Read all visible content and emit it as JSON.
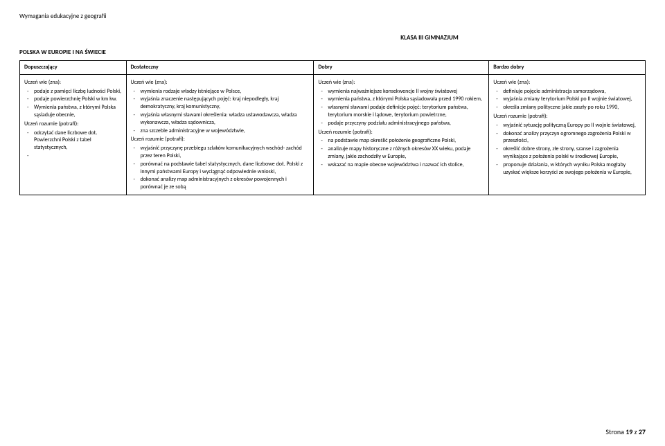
{
  "doc": {
    "header": "Wymagania edukacyjne z geografii",
    "klasa": "KLASA III GIMNAZJUM",
    "section": "POLSKA W EUROPIE I NA ŚWIECIE",
    "footer_prefix": "Strona ",
    "footer_page": "19",
    "footer_mid": " z ",
    "footer_total": "27"
  },
  "headers": {
    "c1": "Dopuszczający",
    "c2": "Dostateczny",
    "c3": "Dobry",
    "c4": "Bardzo dobry"
  },
  "labels": {
    "wie": "Uczeń wie (zna):",
    "rozumie": "Uczeń rozumie (potrafi):"
  },
  "c1": {
    "wie": [
      "podaje z pamięci liczbę ludności Polski,",
      "podaje powierzchnię Polski w km kw.",
      "Wymienia państwa, z którymi Polska sąsiaduje obecnie,",
      ""
    ],
    "rozumie": [
      "odczytać dane  liczbowe dot. Powierzchni Polski z tabel statystycznych,",
      ""
    ]
  },
  "c2": {
    "wie": [
      "wymienia rodzaje władzy istniejące w Polsce,",
      "wyjaśnia znaczenie następujących pojęć: kraj niepodległy, kraj demokratyczny, kraj komunistyczny,",
      "wyjaśnia własnymi sławami określenia:  władza ustawodawcza, władza wykonawcza, władza sądownicza,",
      "zna szczeble administracyjne w województwie,"
    ],
    "rozumie": [
      "wyjaśnić przyczynę przebiegu szlaków komunikacyjnych wschód- zachód przez teren Polski,",
      "porównać na podstawie tabel statystycznych, dane liczbowe dot. Polski z innymi państwami Europy i wyciągnąć odpowiednie wnioski,",
      "dokonać analizy map administracyjnych z okresów powojennych i porównać je ze sobą"
    ]
  },
  "c3": {
    "wie": [
      "wymienia najważniejsze konsekwencje II wojny światowej",
      "wymienia państwa, z którymi Polska sąsiadowała przed 1990 rokiem,",
      "własnymi sławami podaje definicje pojęć: terytorium państwa, terytorium morskie i lądowe, terytorium powietrzne,",
      "podaje przyczyny podziału administracyjnego państwa,"
    ],
    "rozumie": [
      "na podstawie map określić położenie geograficzne Polski,",
      "analizuje mapy historyczne z różnych okresów XX wieku, podaje zmiany, jakie zachodziły w Europie,",
      "wskazać na mapie obecne województwa i nazwać ich stolice,"
    ]
  },
  "c4": {
    "wie": [
      "definiuje pojęcie administracja samorządowa,",
      "wyjaśnia zmiany terytorium Polski po II wojnie światowej,",
      "określa zmiany polityczne jakie zaszły po roku 1990,"
    ],
    "rozumie": [
      "wyjaśnić sytuację polityczną Europy po II wojnie światowej,",
      "dokonać analizy przyczyn ogromnego zagrożenia Polski w przeszłości,",
      "określić dobre strony, złe strony, szanse i zagrożenia wynikające z położenia polski w środkowej Europie,",
      "proponuje działania, w których wyniku Polska mogłaby uzyskać większe korzyści ze swojego położenia w Europie,"
    ]
  }
}
